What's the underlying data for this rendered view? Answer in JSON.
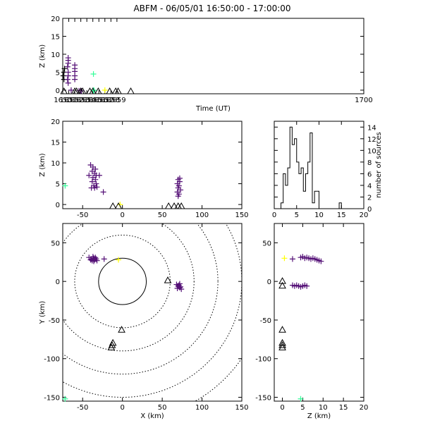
{
  "title": "ABFM - 06/05/01 16:50:00 - 17:00:00",
  "colors": {
    "source_early": "#33ff99",
    "source_mid": "#ffff00",
    "source_late": "#551177",
    "station": "#000000"
  },
  "chart_data": [
    {
      "id": "time_height",
      "type": "scatter",
      "xlabel": "Time (UT)",
      "ylabel": "Z (km)",
      "xlim": [
        1650,
        1700
      ],
      "ylim": [
        -1,
        20
      ],
      "xticks": [
        "1650",
        "1651",
        "1652",
        "1653",
        "1654",
        "1655",
        "1656",
        "1657",
        "1658",
        "1659",
        "1700"
      ],
      "yticks": [
        "0",
        "5",
        "10",
        "15",
        "20"
      ],
      "sources": [
        {
          "x": 1650.2,
          "z": 3.0
        },
        {
          "x": 1650.2,
          "z": 5.0
        },
        {
          "x": 1650.3,
          "z": 6.0
        },
        {
          "x": 1650.1,
          "z": 4.0
        },
        {
          "x": 1650.9,
          "z": 9.0
        },
        {
          "x": 1650.9,
          "z": 8.3
        },
        {
          "x": 1650.9,
          "z": 7.5
        },
        {
          "x": 1650.8,
          "z": 6.5
        },
        {
          "x": 1650.9,
          "z": 5.0
        },
        {
          "x": 1650.9,
          "z": 4.0
        },
        {
          "x": 1650.8,
          "z": 3.0
        },
        {
          "x": 1650.9,
          "z": 2.0
        },
        {
          "x": 1651.4,
          "z": 0.0
        },
        {
          "x": 1652.0,
          "z": 7.0
        },
        {
          "x": 1652.0,
          "z": 6.0
        },
        {
          "x": 1652.0,
          "z": 5.2
        },
        {
          "x": 1652.0,
          "z": 4.0
        },
        {
          "x": 1652.0,
          "z": 3.0
        },
        {
          "x": 1652.7,
          "z": -0.2
        },
        {
          "x": 1653.0,
          "z": -0.2
        },
        {
          "x": 1653.1,
          "z": -0.2
        },
        {
          "x": 1655.1,
          "z": 4.5
        },
        {
          "x": 1655.1,
          "z": 0.0
        },
        {
          "x": 1655.2,
          "z": -0.1
        },
        {
          "x": 1657.0,
          "z": 0.0
        }
      ],
      "stations": [
        {
          "x": 1650.2
        },
        {
          "x": 1652.0
        },
        {
          "x": 1652.3
        },
        {
          "x": 1653.0
        },
        {
          "x": 1653.3
        },
        {
          "x": 1654.5
        },
        {
          "x": 1655.0
        },
        {
          "x": 1655.9
        },
        {
          "x": 1657.8
        },
        {
          "x": 1658.8
        },
        {
          "x": 1659.2
        },
        {
          "x": 1661.3
        }
      ]
    },
    {
      "id": "x_height",
      "type": "scatter",
      "xlabel": "",
      "ylabel": "Z (km)",
      "xlim": [
        -75,
        150
      ],
      "ylim": [
        -1,
        20
      ],
      "xticks": [
        "-50",
        "0",
        "50",
        "100",
        "150"
      ],
      "yticks": [
        "0",
        "5",
        "10",
        "15",
        "20"
      ],
      "sources": [
        {
          "x": -72,
          "z": 4.5
        },
        {
          "x": -40,
          "z": 9.5
        },
        {
          "x": -37,
          "z": 9.0
        },
        {
          "x": -34,
          "z": 8.5
        },
        {
          "x": -38,
          "z": 8.0
        },
        {
          "x": -35,
          "z": 7.5
        },
        {
          "x": -42,
          "z": 7.0
        },
        {
          "x": -33,
          "z": 7.0
        },
        {
          "x": -37,
          "z": 6.5
        },
        {
          "x": -34,
          "z": 6.0
        },
        {
          "x": -38,
          "z": 5.5
        },
        {
          "x": -33,
          "z": 5.0
        },
        {
          "x": -36,
          "z": 4.5
        },
        {
          "x": -39,
          "z": 4.0
        },
        {
          "x": -35,
          "z": 4.0
        },
        {
          "x": -32,
          "z": 4.2
        },
        {
          "x": -24,
          "z": 3.0
        },
        {
          "x": -29,
          "z": 7.0
        },
        {
          "x": -3,
          "z": 0.0
        },
        {
          "x": 70,
          "z": 6.0
        },
        {
          "x": 72,
          "z": 5.5
        },
        {
          "x": 69,
          "z": 5.0
        },
        {
          "x": 71,
          "z": 4.5
        },
        {
          "x": 70,
          "z": 4.0
        },
        {
          "x": 73,
          "z": 3.5
        },
        {
          "x": 69,
          "z": 3.0
        },
        {
          "x": 71,
          "z": 2.5
        },
        {
          "x": 70,
          "z": 2.0
        },
        {
          "x": 72,
          "z": 6.3
        }
      ],
      "stations": [
        {
          "x": -12
        },
        {
          "x": -5
        },
        {
          "x": 58
        },
        {
          "x": 65
        },
        {
          "x": 70
        },
        {
          "x": 74
        }
      ]
    },
    {
      "id": "histogram",
      "type": "bar",
      "xlabel": "",
      "ylabel": "number of sources",
      "xlim": [
        0,
        20
      ],
      "ylim": [
        0,
        15
      ],
      "xticks": [
        "0",
        "5",
        "10",
        "15",
        "20"
      ],
      "yticks": [
        "0",
        "2",
        "4",
        "6",
        "8",
        "10",
        "12",
        "14"
      ],
      "bin_width": 0.5,
      "bins_start": [
        1.5,
        2.0,
        2.5,
        3.0,
        3.5,
        4.0,
        4.5,
        5.0,
        5.5,
        6.0,
        6.5,
        7.0,
        7.5,
        8.0,
        8.5,
        9.0,
        9.5,
        10.0,
        14.5,
        15.0
      ],
      "counts": [
        1,
        6,
        4,
        7,
        14,
        11,
        12,
        8,
        6,
        7,
        3,
        6,
        8,
        13,
        1,
        3,
        3,
        0,
        1,
        0
      ]
    },
    {
      "id": "plan_view",
      "type": "scatter",
      "xlabel": "X (km)",
      "ylabel": "Y (km)",
      "xlim": [
        -75,
        150
      ],
      "ylim": [
        -155,
        75
      ],
      "xticks": [
        "-50",
        "0",
        "50",
        "100",
        "150"
      ],
      "yticks": [
        "50",
        "0",
        "-50",
        "-100",
        "-150"
      ],
      "range_rings_km": [
        30,
        60,
        90,
        120,
        150,
        180
      ],
      "ring_center": [
        0,
        0
      ],
      "sources": [
        {
          "x": -42,
          "y": 31
        },
        {
          "x": -39,
          "y": 29
        },
        {
          "x": -37,
          "y": 32
        },
        {
          "x": -35,
          "y": 28
        },
        {
          "x": -36,
          "y": 30
        },
        {
          "x": -38,
          "y": 27
        },
        {
          "x": -34,
          "y": 31
        },
        {
          "x": -33,
          "y": 29
        },
        {
          "x": -40,
          "y": 28
        },
        {
          "x": -36,
          "y": 26
        },
        {
          "x": -32,
          "y": 27
        },
        {
          "x": -23,
          "y": 29
        },
        {
          "x": -5,
          "y": 28
        },
        {
          "x": 68,
          "y": -4
        },
        {
          "x": 70,
          "y": -6
        },
        {
          "x": 71,
          "y": -5
        },
        {
          "x": 72,
          "y": -8
        },
        {
          "x": 73,
          "y": -7
        },
        {
          "x": 74,
          "y": -10
        },
        {
          "x": 69,
          "y": -9
        },
        {
          "x": 72,
          "y": -3
        },
        {
          "x": -72,
          "y": -152
        }
      ],
      "stations": [
        {
          "x": 57,
          "y": 1
        },
        {
          "x": -1,
          "y": -63
        },
        {
          "x": -12,
          "y": -80
        },
        {
          "x": -13,
          "y": -83
        },
        {
          "x": -14,
          "y": -86
        }
      ]
    },
    {
      "id": "z_plan",
      "type": "scatter",
      "xlabel": "Z (km)",
      "ylabel": "",
      "xlim": [
        -2,
        20
      ],
      "ylim": [
        -155,
        75
      ],
      "xticks": [
        "0",
        "5",
        "10",
        "15",
        "20"
      ],
      "yticks": [
        "50",
        "0",
        "-50",
        "-100",
        "-150"
      ],
      "sources": [
        {
          "x": 0.5,
          "y": 30
        },
        {
          "x": 2.5,
          "y": 29
        },
        {
          "x": 4.5,
          "y": 31
        },
        {
          "x": 5.0,
          "y": 32
        },
        {
          "x": 5.5,
          "y": 30
        },
        {
          "x": 6.0,
          "y": 31
        },
        {
          "x": 6.5,
          "y": 30
        },
        {
          "x": 7.0,
          "y": 29
        },
        {
          "x": 7.5,
          "y": 30
        },
        {
          "x": 8.0,
          "y": 29
        },
        {
          "x": 8.5,
          "y": 28
        },
        {
          "x": 9.0,
          "y": 27
        },
        {
          "x": 9.5,
          "y": 26
        },
        {
          "x": 2.5,
          "y": -5
        },
        {
          "x": 3.0,
          "y": -6
        },
        {
          "x": 3.5,
          "y": -5
        },
        {
          "x": 4.0,
          "y": -6
        },
        {
          "x": 4.5,
          "y": -7
        },
        {
          "x": 5.0,
          "y": -6
        },
        {
          "x": 5.5,
          "y": -5
        },
        {
          "x": 6.0,
          "y": -6
        },
        {
          "x": 4.5,
          "y": -152
        }
      ],
      "stations": [
        {
          "x": 0,
          "y": 0
        },
        {
          "x": 0,
          "y": -6
        },
        {
          "x": 0,
          "y": -63
        },
        {
          "x": 0,
          "y": -80
        },
        {
          "x": 0,
          "y": -83
        },
        {
          "x": 0,
          "y": -86
        }
      ]
    }
  ]
}
